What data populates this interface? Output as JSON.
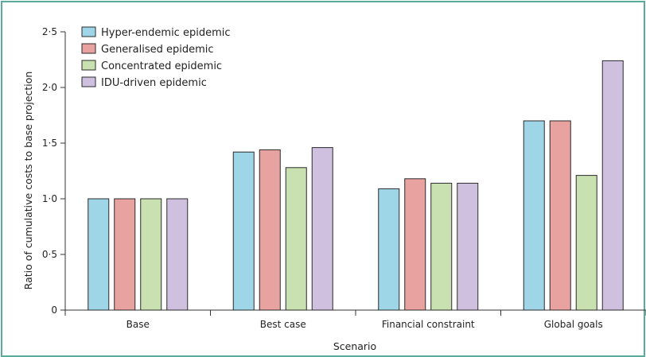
{
  "chart_data": {
    "type": "bar",
    "xlabel": "Scenario",
    "ylabel": "Ratio of cumulative costs to base projection",
    "categories": [
      "Base",
      "Best case",
      "Financial constraint",
      "Global goals"
    ],
    "ylim": [
      0,
      2.5
    ],
    "yticks": [
      0,
      0.5,
      1.0,
      1.5,
      2.0,
      2.5
    ],
    "ytick_labels": [
      "0",
      "0·5",
      "1·0",
      "1·5",
      "2·0",
      "2·5"
    ],
    "legend_position": "top-left",
    "grid": false,
    "series": [
      {
        "name": "Hyper-endemic epidemic",
        "color": "#9ed6e8",
        "values": [
          1.0,
          1.42,
          1.09,
          1.7
        ]
      },
      {
        "name": "Generalised epidemic",
        "color": "#e8a3a0",
        "values": [
          1.0,
          1.44,
          1.18,
          1.7
        ]
      },
      {
        "name": "Concentrated epidemic",
        "color": "#c9e0b0",
        "values": [
          1.0,
          1.28,
          1.14,
          1.21
        ]
      },
      {
        "name": "IDU-driven epidemic",
        "color": "#cfc0e0",
        "values": [
          1.0,
          1.46,
          1.14,
          2.24
        ]
      }
    ]
  }
}
